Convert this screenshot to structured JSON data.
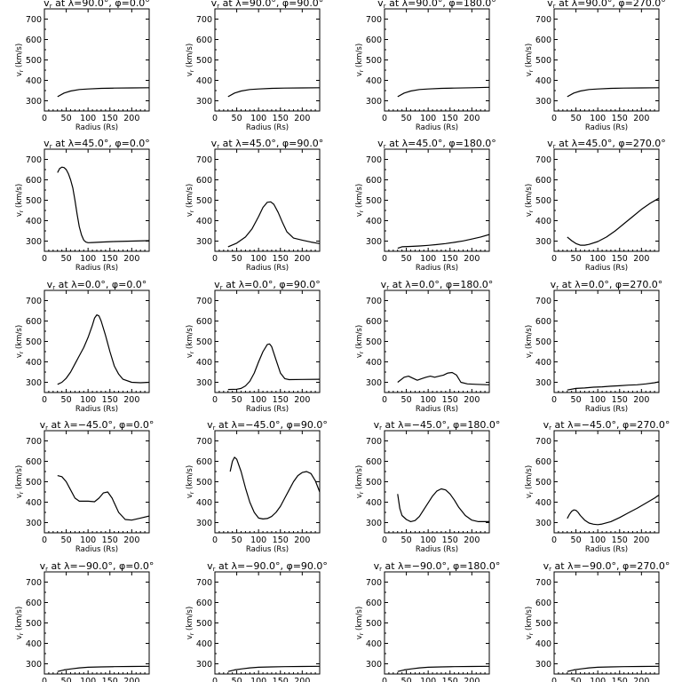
{
  "chart_data": [
    {
      "type": "line",
      "title": "v_r at λ=90.0°, φ=0.0°",
      "title_parts": {
        "lam": "90.0°",
        "phi": "0.0°"
      },
      "xlabel": "Radius (Rs)",
      "ylabel": "v_r (km/s)",
      "xlim": [
        0,
        240
      ],
      "ylim": [
        250,
        750
      ],
      "xticks": [
        0,
        50,
        100,
        150,
        200
      ],
      "yticks": [
        300,
        400,
        500,
        600,
        700
      ],
      "x": [
        30,
        45,
        60,
        80,
        100,
        130,
        160,
        200,
        240
      ],
      "y": [
        320,
        338,
        348,
        355,
        358,
        361,
        362,
        363,
        364
      ]
    },
    {
      "type": "line",
      "title": "v_r at λ=90.0°, φ=90.0°",
      "title_parts": {
        "lam": "90.0°",
        "phi": "90.0°"
      },
      "xlabel": "Radius (Rs)",
      "ylabel": "v_r (km/s)",
      "xlim": [
        0,
        240
      ],
      "ylim": [
        250,
        750
      ],
      "xticks": [
        0,
        50,
        100,
        150,
        200
      ],
      "yticks": [
        300,
        400,
        500,
        600,
        700
      ],
      "x": [
        30,
        45,
        60,
        80,
        100,
        130,
        160,
        200,
        240
      ],
      "y": [
        320,
        338,
        348,
        355,
        358,
        361,
        362,
        363,
        364
      ]
    },
    {
      "type": "line",
      "title": "v_r at λ=90.0°, φ=180.0°",
      "title_parts": {
        "lam": "90.0°",
        "phi": "180.0°"
      },
      "xlabel": "Radius (Rs)",
      "ylabel": "v_r (km/s)",
      "xlim": [
        0,
        240
      ],
      "ylim": [
        250,
        750
      ],
      "xticks": [
        0,
        50,
        100,
        150,
        200
      ],
      "yticks": [
        300,
        400,
        500,
        600,
        700
      ],
      "x": [
        30,
        45,
        60,
        80,
        100,
        130,
        160,
        200,
        240
      ],
      "y": [
        320,
        338,
        348,
        355,
        358,
        361,
        362,
        364,
        366
      ]
    },
    {
      "type": "line",
      "title": "v_r at λ=90.0°, φ=270.0°",
      "title_parts": {
        "lam": "90.0°",
        "phi": "270.0°"
      },
      "xlabel": "Radius (Rs)",
      "ylabel": "v_r (km/s)",
      "xlim": [
        0,
        240
      ],
      "ylim": [
        250,
        750
      ],
      "xticks": [
        0,
        50,
        100,
        150,
        200
      ],
      "yticks": [
        300,
        400,
        500,
        600,
        700
      ],
      "x": [
        30,
        45,
        60,
        80,
        100,
        130,
        160,
        200,
        240
      ],
      "y": [
        320,
        338,
        348,
        355,
        358,
        361,
        362,
        363,
        364
      ]
    },
    {
      "type": "line",
      "title": "v_r at λ=45.0°, φ=0.0°",
      "title_parts": {
        "lam": "45.0°",
        "phi": "0.0°"
      },
      "xlabel": "Radius (Rs)",
      "ylabel": "v_r (km/s)",
      "xlim": [
        0,
        240
      ],
      "ylim": [
        250,
        750
      ],
      "xticks": [
        0,
        50,
        100,
        150,
        200
      ],
      "yticks": [
        300,
        400,
        500,
        600,
        700
      ],
      "x": [
        30,
        35,
        40,
        45,
        50,
        55,
        60,
        65,
        70,
        75,
        80,
        85,
        90,
        95,
        100,
        110,
        130,
        160,
        200,
        240
      ],
      "y": [
        635,
        655,
        662,
        660,
        650,
        630,
        600,
        560,
        500,
        430,
        370,
        330,
        305,
        295,
        292,
        293,
        295,
        298,
        300,
        302
      ]
    },
    {
      "type": "line",
      "title": "v_r at λ=45.0°, φ=90.0°",
      "title_parts": {
        "lam": "45.0°",
        "phi": "90.0°"
      },
      "xlabel": "Radius (Rs)",
      "ylabel": "v_r (km/s)",
      "xlim": [
        0,
        240
      ],
      "ylim": [
        250,
        750
      ],
      "xticks": [
        0,
        50,
        100,
        150,
        200
      ],
      "yticks": [
        300,
        400,
        500,
        600,
        700
      ],
      "x": [
        30,
        50,
        70,
        85,
        100,
        110,
        120,
        128,
        135,
        145,
        155,
        165,
        180,
        200,
        220,
        240
      ],
      "y": [
        272,
        290,
        320,
        360,
        420,
        465,
        490,
        492,
        480,
        440,
        390,
        345,
        315,
        305,
        295,
        288
      ]
    },
    {
      "type": "line",
      "title": "v_r at λ=45.0°, φ=180.0°",
      "title_parts": {
        "lam": "45.0°",
        "phi": "180.0°"
      },
      "xlabel": "Radius (Rs)",
      "ylabel": "v_r (km/s)",
      "xlim": [
        0,
        240
      ],
      "ylim": [
        250,
        750
      ],
      "xticks": [
        0,
        50,
        100,
        150,
        200
      ],
      "yticks": [
        300,
        400,
        500,
        600,
        700
      ],
      "x": [
        30,
        40,
        60,
        80,
        100,
        120,
        140,
        160,
        180,
        200,
        220,
        240
      ],
      "y": [
        265,
        272,
        274,
        276,
        279,
        283,
        288,
        294,
        301,
        310,
        320,
        332
      ]
    },
    {
      "type": "line",
      "title": "v_r at λ=45.0°, φ=270.0°",
      "title_parts": {
        "lam": "45.0°",
        "phi": "270.0°"
      },
      "xlabel": "Radius (Rs)",
      "ylabel": "v_r (km/s)",
      "xlim": [
        0,
        240
      ],
      "ylim": [
        250,
        750
      ],
      "xticks": [
        0,
        50,
        100,
        150,
        200
      ],
      "yticks": [
        300,
        400,
        500,
        600,
        700
      ],
      "x": [
        30,
        40,
        50,
        60,
        70,
        80,
        100,
        120,
        140,
        160,
        180,
        200,
        220,
        240
      ],
      "y": [
        320,
        302,
        288,
        280,
        280,
        284,
        298,
        320,
        350,
        385,
        420,
        455,
        485,
        510
      ]
    },
    {
      "type": "line",
      "title": "v_r at λ=0.0°, φ=0.0°",
      "title_parts": {
        "lam": "0.0°",
        "phi": "0.0°"
      },
      "xlabel": "Radius (Rs)",
      "ylabel": "v_r (km/s)",
      "xlim": [
        0,
        240
      ],
      "ylim": [
        250,
        750
      ],
      "xticks": [
        0,
        50,
        100,
        150,
        200
      ],
      "yticks": [
        300,
        400,
        500,
        600,
        700
      ],
      "x": [
        30,
        40,
        50,
        60,
        70,
        80,
        90,
        100,
        110,
        115,
        120,
        125,
        130,
        140,
        150,
        160,
        170,
        180,
        200,
        220,
        240
      ],
      "y": [
        290,
        300,
        320,
        350,
        390,
        430,
        470,
        520,
        580,
        615,
        630,
        625,
        600,
        530,
        450,
        380,
        340,
        315,
        300,
        298,
        300
      ]
    },
    {
      "type": "line",
      "title": "v_r at λ=0.0°, φ=90.0°",
      "title_parts": {
        "lam": "0.0°",
        "phi": "90.0°"
      },
      "xlabel": "Radius (Rs)",
      "ylabel": "v_r (km/s)",
      "xlim": [
        0,
        240
      ],
      "ylim": [
        250,
        750
      ],
      "xticks": [
        0,
        50,
        100,
        150,
        200
      ],
      "yticks": [
        300,
        400,
        500,
        600,
        700
      ],
      "x": [
        30,
        50,
        60,
        70,
        80,
        90,
        100,
        110,
        120,
        125,
        130,
        140,
        150,
        160,
        170,
        200,
        240
      ],
      "y": [
        265,
        266,
        270,
        282,
        305,
        345,
        400,
        450,
        485,
        488,
        475,
        410,
        345,
        318,
        313,
        314,
        315
      ]
    },
    {
      "type": "line",
      "title": "v_r at λ=0.0°, φ=180.0°",
      "title_parts": {
        "lam": "0.0°",
        "phi": "180.0°"
      },
      "xlabel": "Radius (Rs)",
      "ylabel": "v_r (km/s)",
      "xlim": [
        0,
        240
      ],
      "ylim": [
        250,
        750
      ],
      "xticks": [
        0,
        50,
        100,
        150,
        200
      ],
      "yticks": [
        300,
        400,
        500,
        600,
        700
      ],
      "x": [
        30,
        45,
        55,
        65,
        75,
        85,
        95,
        105,
        115,
        125,
        135,
        145,
        155,
        165,
        175,
        190,
        210,
        240
      ],
      "y": [
        300,
        325,
        330,
        320,
        310,
        318,
        325,
        330,
        325,
        330,
        335,
        345,
        348,
        335,
        300,
        292,
        290,
        288
      ]
    },
    {
      "type": "line",
      "title": "v_r at λ=0.0°, φ=270.0°",
      "title_parts": {
        "lam": "0.0°",
        "phi": "270.0°"
      },
      "xlabel": "Radius (Rs)",
      "ylabel": "v_r (km/s)",
      "xlim": [
        0,
        240
      ],
      "ylim": [
        250,
        750
      ],
      "xticks": [
        0,
        50,
        100,
        150,
        200
      ],
      "yticks": [
        300,
        400,
        500,
        600,
        700
      ],
      "x": [
        30,
        50,
        70,
        90,
        110,
        130,
        150,
        170,
        190,
        210,
        230,
        240
      ],
      "y": [
        262,
        270,
        272,
        276,
        278,
        281,
        283,
        286,
        288,
        292,
        298,
        302
      ]
    },
    {
      "type": "line",
      "title": "v_r at λ=−45.0°, φ=0.0°",
      "title_parts": {
        "lam": "−45.0°",
        "phi": "0.0°"
      },
      "xlabel": "Radius (Rs)",
      "ylabel": "v_r (km/s)",
      "xlim": [
        0,
        240
      ],
      "ylim": [
        250,
        750
      ],
      "xticks": [
        0,
        50,
        100,
        150,
        200
      ],
      "yticks": [
        300,
        400,
        500,
        600,
        700
      ],
      "x": [
        30,
        40,
        50,
        60,
        70,
        80,
        100,
        115,
        125,
        135,
        145,
        155,
        170,
        185,
        200,
        220,
        240
      ],
      "y": [
        530,
        525,
        500,
        460,
        420,
        405,
        405,
        402,
        420,
        445,
        450,
        420,
        350,
        315,
        312,
        322,
        332
      ]
    },
    {
      "type": "line",
      "title": "v_r at λ=−45.0°, φ=90.0°",
      "title_parts": {
        "lam": "−45.0°",
        "phi": "90.0°"
      },
      "xlabel": "Radius (Rs)",
      "ylabel": "v_r (km/s)",
      "xlim": [
        0,
        240
      ],
      "ylim": [
        250,
        750
      ],
      "xticks": [
        0,
        50,
        100,
        150,
        200
      ],
      "yticks": [
        300,
        400,
        500,
        600,
        700
      ],
      "x": [
        35,
        40,
        45,
        50,
        60,
        70,
        80,
        90,
        100,
        110,
        120,
        130,
        140,
        150,
        160,
        170,
        180,
        190,
        200,
        210,
        220,
        230,
        240
      ],
      "y": [
        550,
        600,
        620,
        610,
        550,
        470,
        400,
        350,
        322,
        318,
        320,
        330,
        350,
        380,
        420,
        460,
        500,
        530,
        545,
        550,
        540,
        505,
        450
      ]
    },
    {
      "type": "line",
      "title": "v_r at λ=−45.0°, φ=180.0°",
      "title_parts": {
        "lam": "−45.0°",
        "phi": "180.0°"
      },
      "xlabel": "Radius (Rs)",
      "ylabel": "v_r (km/s)",
      "xlim": [
        0,
        240
      ],
      "ylim": [
        250,
        750
      ],
      "xticks": [
        0,
        50,
        100,
        150,
        200
      ],
      "yticks": [
        300,
        400,
        500,
        600,
        700
      ],
      "x": [
        30,
        35,
        40,
        50,
        60,
        70,
        80,
        95,
        110,
        120,
        130,
        140,
        150,
        160,
        170,
        185,
        200,
        215,
        230,
        240
      ],
      "y": [
        440,
        370,
        335,
        315,
        305,
        310,
        330,
        380,
        430,
        455,
        465,
        460,
        440,
        410,
        375,
        335,
        312,
        305,
        305,
        305
      ]
    },
    {
      "type": "line",
      "title": "v_r at λ=−45.0°, φ=270.0°",
      "title_parts": {
        "lam": "−45.0°",
        "phi": "270.0°"
      },
      "xlabel": "Radius (Rs)",
      "ylabel": "v_r (km/s)",
      "xlim": [
        0,
        240
      ],
      "ylim": [
        250,
        750
      ],
      "xticks": [
        0,
        50,
        100,
        150,
        200
      ],
      "yticks": [
        300,
        400,
        500,
        600,
        700
      ],
      "x": [
        30,
        35,
        40,
        45,
        50,
        55,
        60,
        70,
        80,
        90,
        100,
        110,
        130,
        150,
        170,
        190,
        210,
        230,
        240
      ],
      "y": [
        320,
        340,
        355,
        362,
        360,
        350,
        335,
        312,
        298,
        292,
        290,
        293,
        305,
        325,
        348,
        370,
        395,
        420,
        435
      ]
    },
    {
      "type": "line",
      "title": "v_r at λ=−90.0°, φ=0.0°",
      "title_parts": {
        "lam": "−90.0°",
        "phi": "0.0°"
      },
      "xlabel": "Radius (Rs)",
      "ylabel": "v_r (km/s)",
      "xlim": [
        0,
        240
      ],
      "ylim": [
        250,
        750
      ],
      "xticks": [
        0,
        50,
        100,
        150,
        200
      ],
      "yticks": [
        300,
        400,
        500,
        600,
        700
      ],
      "x": [
        30,
        45,
        60,
        80,
        100,
        130,
        160,
        200,
        240
      ],
      "y": [
        262,
        270,
        275,
        280,
        283,
        285,
        286,
        287,
        288
      ]
    },
    {
      "type": "line",
      "title": "v_r at λ=−90.0°, φ=90.0°",
      "title_parts": {
        "lam": "−90.0°",
        "phi": "90.0°"
      },
      "xlabel": "Radius (Rs)",
      "ylabel": "v_r (km/s)",
      "xlim": [
        0,
        240
      ],
      "ylim": [
        250,
        750
      ],
      "xticks": [
        0,
        50,
        100,
        150,
        200
      ],
      "yticks": [
        300,
        400,
        500,
        600,
        700
      ],
      "x": [
        30,
        45,
        60,
        80,
        100,
        130,
        160,
        200,
        240
      ],
      "y": [
        262,
        270,
        275,
        280,
        283,
        285,
        286,
        287,
        288
      ]
    },
    {
      "type": "line",
      "title": "v_r at λ=−90.0°, φ=180.0°",
      "title_parts": {
        "lam": "−90.0°",
        "phi": "180.0°"
      },
      "xlabel": "Radius (Rs)",
      "ylabel": "v_r (km/s)",
      "xlim": [
        0,
        240
      ],
      "ylim": [
        250,
        750
      ],
      "xticks": [
        0,
        50,
        100,
        150,
        200
      ],
      "yticks": [
        300,
        400,
        500,
        600,
        700
      ],
      "x": [
        30,
        45,
        60,
        80,
        100,
        130,
        160,
        200,
        240
      ],
      "y": [
        262,
        270,
        275,
        280,
        283,
        285,
        286,
        287,
        288
      ]
    },
    {
      "type": "line",
      "title": "v_r at λ=−90.0°, φ=270.0°",
      "title_parts": {
        "lam": "−90.0°",
        "phi": "270.0°"
      },
      "xlabel": "Radius (Rs)",
      "ylabel": "v_r (km/s)",
      "xlim": [
        0,
        240
      ],
      "ylim": [
        250,
        750
      ],
      "xticks": [
        0,
        50,
        100,
        150,
        200
      ],
      "yticks": [
        300,
        400,
        500,
        600,
        700
      ],
      "x": [
        30,
        45,
        60,
        80,
        100,
        130,
        160,
        200,
        240
      ],
      "y": [
        262,
        270,
        275,
        280,
        283,
        285,
        286,
        287,
        288
      ]
    }
  ]
}
